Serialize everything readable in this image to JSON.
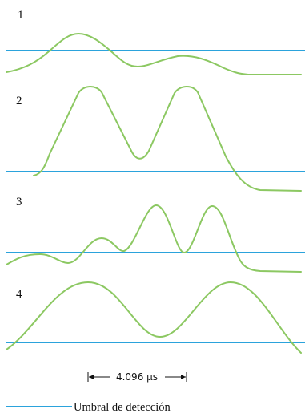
{
  "colors": {
    "signal": "#8cc862",
    "threshold": "#2ba3dc",
    "text": "#111111"
  },
  "panels": [
    {
      "label": "1"
    },
    {
      "label": "2"
    },
    {
      "label": "3"
    },
    {
      "label": "4"
    }
  ],
  "scale_bar": {
    "label": "4.096 µs"
  },
  "legend": {
    "label": "Umbral de detección"
  }
}
